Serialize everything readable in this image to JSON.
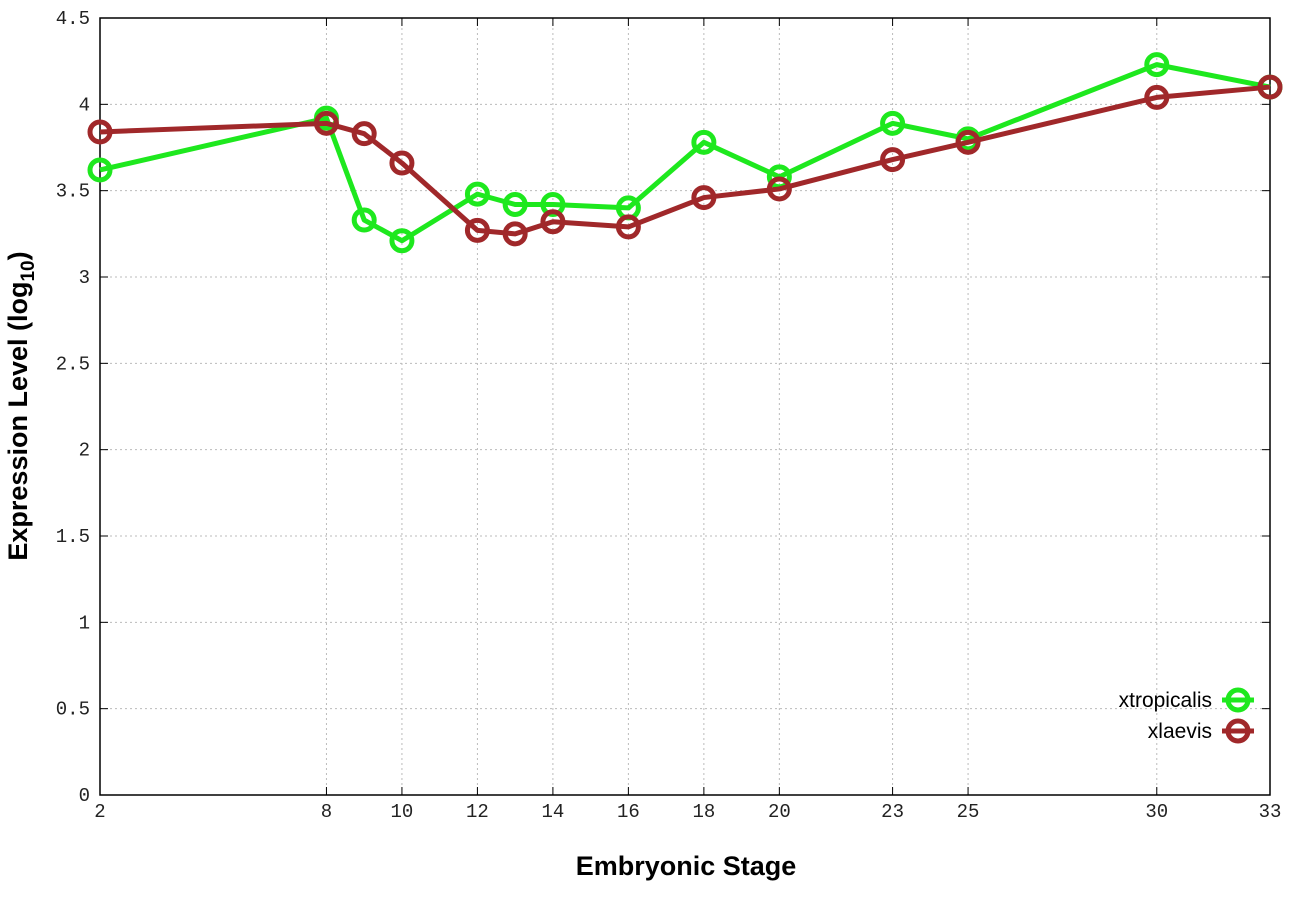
{
  "chart_data": {
    "type": "line",
    "title": "",
    "xlabel": "Embryonic Stage",
    "ylabel": "Expression Level (log",
    "ylabel_sub": "10",
    "ylabel_end": ")",
    "x": [
      2,
      8,
      9,
      10,
      12,
      13,
      14,
      16,
      18,
      20,
      23,
      25,
      30,
      33
    ],
    "xticks": [
      "2",
      "8",
      "10",
      "12",
      "14",
      "16",
      "18",
      "20",
      "23",
      "25",
      "30",
      "33"
    ],
    "xtick_values": [
      2,
      8,
      10,
      12,
      14,
      16,
      18,
      20,
      23,
      25,
      30,
      33
    ],
    "yticks": [
      "0",
      "0.5",
      "1",
      "1.5",
      "2",
      "2.5",
      "3",
      "3.5",
      "4",
      "4.5"
    ],
    "xlim": [
      2,
      33
    ],
    "ylim": [
      0,
      4.5
    ],
    "grid": true,
    "legend_position": "bottom-right",
    "series": [
      {
        "name": "xtropicalis",
        "color": "#1ee81e",
        "values": [
          3.62,
          3.92,
          3.33,
          3.21,
          3.48,
          3.42,
          3.42,
          3.4,
          3.78,
          3.58,
          3.89,
          3.8,
          4.23,
          4.1
        ]
      },
      {
        "name": "xlaevis",
        "color": "#a0282a",
        "values": [
          3.84,
          3.89,
          3.83,
          3.66,
          3.27,
          3.25,
          3.32,
          3.29,
          3.46,
          3.51,
          3.68,
          3.78,
          4.04,
          4.1
        ]
      }
    ]
  }
}
